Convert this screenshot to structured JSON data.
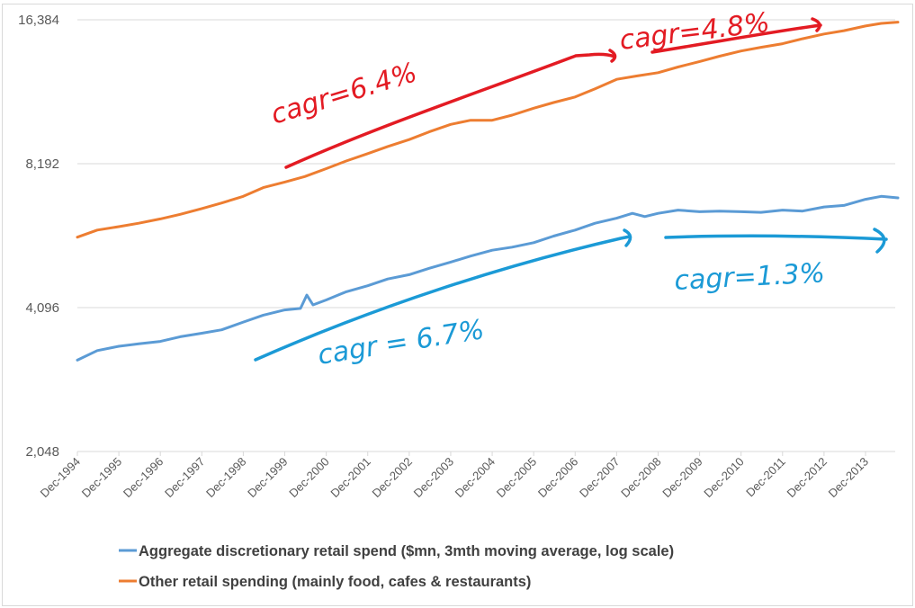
{
  "chart_data": {
    "type": "line",
    "title": "",
    "xlabel": "",
    "ylabel": "",
    "y_scale": "log2",
    "ylim": [
      2048,
      16384
    ],
    "y_ticks": [
      {
        "value": 2048,
        "label": "2,048"
      },
      {
        "value": 4096,
        "label": "4,096"
      },
      {
        "value": 8192,
        "label": "8,192"
      },
      {
        "value": 16384,
        "label": "16,384"
      }
    ],
    "x_ticks": [
      "Dec-1994",
      "Dec-1995",
      "Dec-1996",
      "Dec-1997",
      "Dec-1998",
      "Dec-1999",
      "Dec-2000",
      "Dec-2001",
      "Dec-2002",
      "Dec-2003",
      "Dec-2004",
      "Dec-2005",
      "Dec-2006",
      "Dec-2007",
      "Dec-2008",
      "Dec-2009",
      "Dec-2010",
      "Dec-2011",
      "Dec-2012",
      "Dec-2013"
    ],
    "x_range_years": [
      1994.92,
      2014.7
    ],
    "grid": "horizontal",
    "legend_position": "bottom",
    "series": [
      {
        "name": "Aggregate discretionary retail spend ($mn, 3mth moving average, log scale)",
        "color": "#5b9bd5",
        "x": [
          1994.92,
          1995.4,
          1995.92,
          1996.4,
          1996.92,
          1997.4,
          1997.92,
          1998.4,
          1998.92,
          1999.4,
          1999.92,
          2000.3,
          2000.45,
          2000.6,
          2000.92,
          2001.4,
          2001.92,
          2002.4,
          2002.92,
          2003.4,
          2003.92,
          2004.4,
          2004.92,
          2005.4,
          2005.92,
          2006.4,
          2006.92,
          2007.4,
          2007.92,
          2008.3,
          2008.6,
          2008.92,
          2009.4,
          2009.92,
          2010.4,
          2010.92,
          2011.4,
          2011.92,
          2012.4,
          2012.92,
          2013.4,
          2013.92,
          2014.3,
          2014.7
        ],
        "values": [
          3180,
          3330,
          3400,
          3440,
          3480,
          3560,
          3620,
          3680,
          3820,
          3950,
          4050,
          4080,
          4350,
          4150,
          4250,
          4420,
          4550,
          4700,
          4800,
          4950,
          5100,
          5250,
          5400,
          5480,
          5600,
          5780,
          5950,
          6150,
          6300,
          6450,
          6350,
          6450,
          6550,
          6500,
          6520,
          6500,
          6480,
          6550,
          6520,
          6650,
          6700,
          6900,
          7000,
          6950
        ]
      },
      {
        "name": "Other retail spending (mainly food, cafes & restaurants)",
        "color": "#ed7d31",
        "x": [
          1994.92,
          1995.4,
          1995.92,
          1996.4,
          1996.92,
          1997.4,
          1997.92,
          1998.4,
          1998.92,
          1999.4,
          1999.92,
          2000.4,
          2000.92,
          2001.4,
          2001.92,
          2002.4,
          2002.92,
          2003.4,
          2003.92,
          2004.4,
          2004.92,
          2005.4,
          2005.92,
          2006.4,
          2006.92,
          2007.4,
          2007.92,
          2008.4,
          2008.92,
          2009.4,
          2009.92,
          2010.4,
          2010.92,
          2011.4,
          2011.92,
          2012.4,
          2012.92,
          2013.4,
          2013.92,
          2014.3,
          2014.7
        ],
        "values": [
          5750,
          5950,
          6050,
          6150,
          6280,
          6420,
          6600,
          6780,
          7000,
          7300,
          7500,
          7700,
          8000,
          8300,
          8600,
          8900,
          9200,
          9550,
          9900,
          10100,
          10100,
          10350,
          10700,
          11000,
          11300,
          11750,
          12300,
          12500,
          12700,
          13050,
          13400,
          13750,
          14100,
          14350,
          14600,
          14950,
          15300,
          15550,
          15900,
          16100,
          16200
        ]
      }
    ],
    "annotations": [
      {
        "text": "cagr=6.4%",
        "color": "#e31b23",
        "applies_to": "Other retail spending",
        "period": "1999-2007"
      },
      {
        "text": "cagr=4.8%",
        "color": "#e31b23",
        "applies_to": "Other retail spending",
        "period": "2008-2014"
      },
      {
        "text": "cagr = 6.7%",
        "color": "#1b9ad6",
        "applies_to": "Aggregate discretionary retail spend",
        "period": "1998-2007"
      },
      {
        "text": "cagr=1.3%",
        "color": "#1b9ad6",
        "applies_to": "Aggregate discretionary retail spend",
        "period": "2008-2014"
      }
    ]
  },
  "legend": {
    "items": [
      {
        "label": "Aggregate discretionary retail spend ($mn, 3mth moving average, log scale)",
        "color": "#5b9bd5"
      },
      {
        "label": "Other retail spending (mainly food, cafes & restaurants)",
        "color": "#ed7d31"
      }
    ]
  }
}
